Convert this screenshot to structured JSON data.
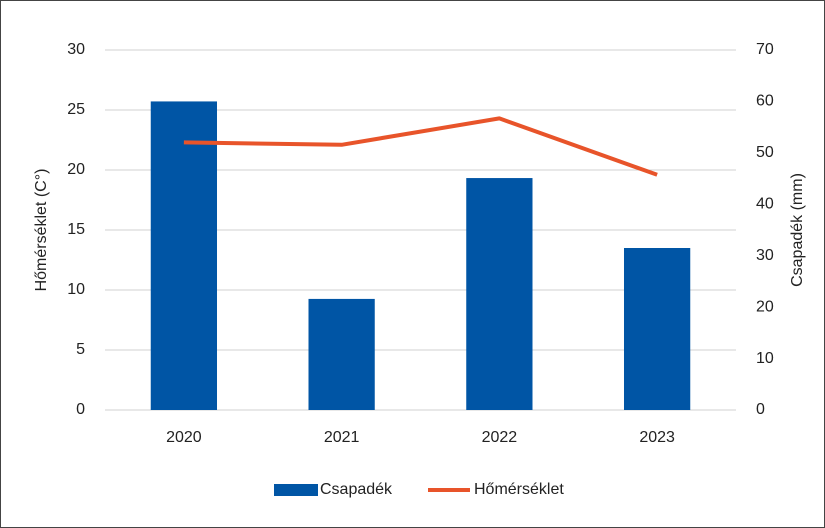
{
  "chart_data": {
    "type": "bar",
    "categories": [
      "2020",
      "2021",
      "2022",
      "2023"
    ],
    "series": [
      {
        "name": "Csapadék",
        "type": "bar",
        "axis": "y2",
        "color": "#0055a5",
        "values": [
          60,
          21.6,
          45.1,
          31.5
        ]
      },
      {
        "name": "Hőmérséklet",
        "type": "line",
        "color": "#e8542a",
        "values": [
          22.3,
          22.1,
          24.3,
          19.6
        ]
      }
    ],
    "ylabel": "Hőmérséklet (C°)",
    "y2label": "Csapadék (mm)",
    "ylim": [
      0,
      30
    ],
    "yticks": [
      0,
      5,
      10,
      15,
      20,
      25,
      30
    ],
    "y2lim": [
      0,
      70
    ],
    "y2ticks": [
      0,
      10,
      20,
      30,
      40,
      50,
      60,
      70
    ],
    "grid": true,
    "legend": "bottom"
  }
}
